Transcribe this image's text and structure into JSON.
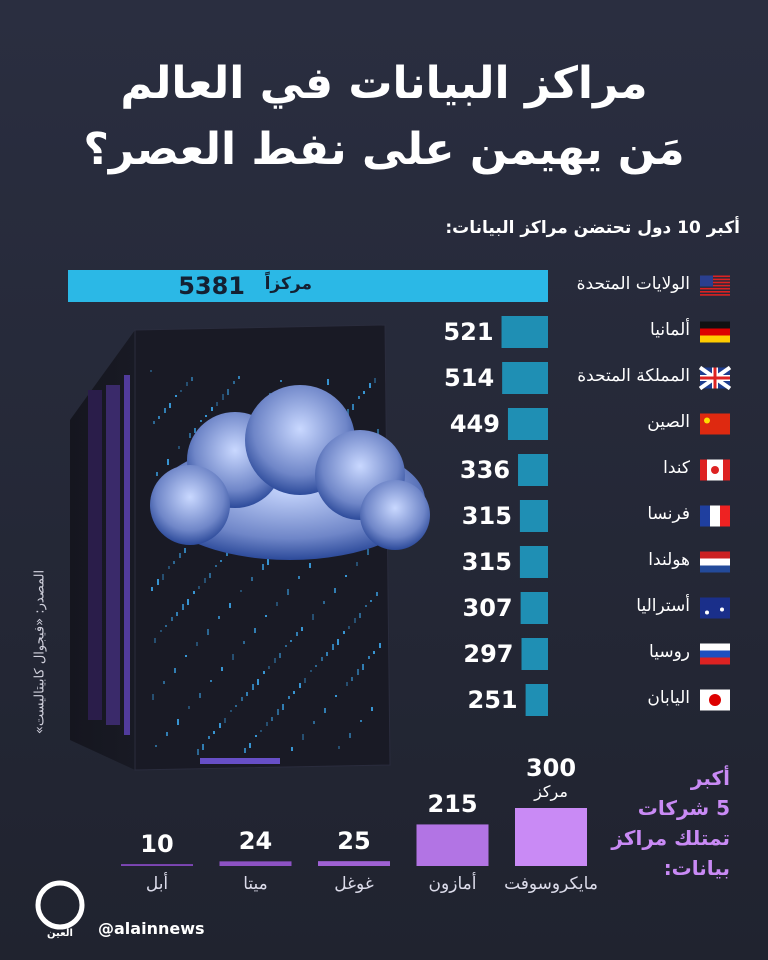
{
  "header": {
    "title": "مراكز البيانات في العالم",
    "subtitle": "مَن يهيمن على نفط العصر؟"
  },
  "chart_data": [
    {
      "type": "hbar",
      "title": "أكبر 10 دول تحتضن مراكز البيانات:",
      "unit": "مركزاً",
      "categories": [
        "الولايات المتحدة",
        "ألمانيا",
        "المملكة المتحدة",
        "الصين",
        "كندا",
        "فرنسا",
        "هولندا",
        "أستراليا",
        "روسيا",
        "اليابان"
      ],
      "values": [
        5381,
        521,
        514,
        449,
        336,
        315,
        315,
        307,
        297,
        251
      ],
      "colors": [
        "#2bb8e6",
        "#1f8fb4",
        "#1f8fb4",
        "#1f8fb4",
        "#1f8fb4",
        "#1f8fb4",
        "#1f8fb4",
        "#1f8fb4",
        "#1f8fb4",
        "#1f8fb4"
      ]
    },
    {
      "type": "bar",
      "title_lines": [
        "أكبر",
        "5 شركات",
        "تمتلك مراكز",
        "بيانات:"
      ],
      "unit": "مركز",
      "categories": [
        "مايكروسوفت",
        "أمازون",
        "غوغل",
        "ميتا",
        "أبل"
      ],
      "values": [
        300,
        215,
        25,
        24,
        10
      ],
      "colors": [
        "#c98af5",
        "#b274e4",
        "#9f61d4",
        "#8d52c4",
        "#7d46b4"
      ]
    }
  ],
  "footer": {
    "source": "المصدر: «فيجوال كابيتاليست»",
    "handle": "@alainnews",
    "logo": "العين"
  }
}
